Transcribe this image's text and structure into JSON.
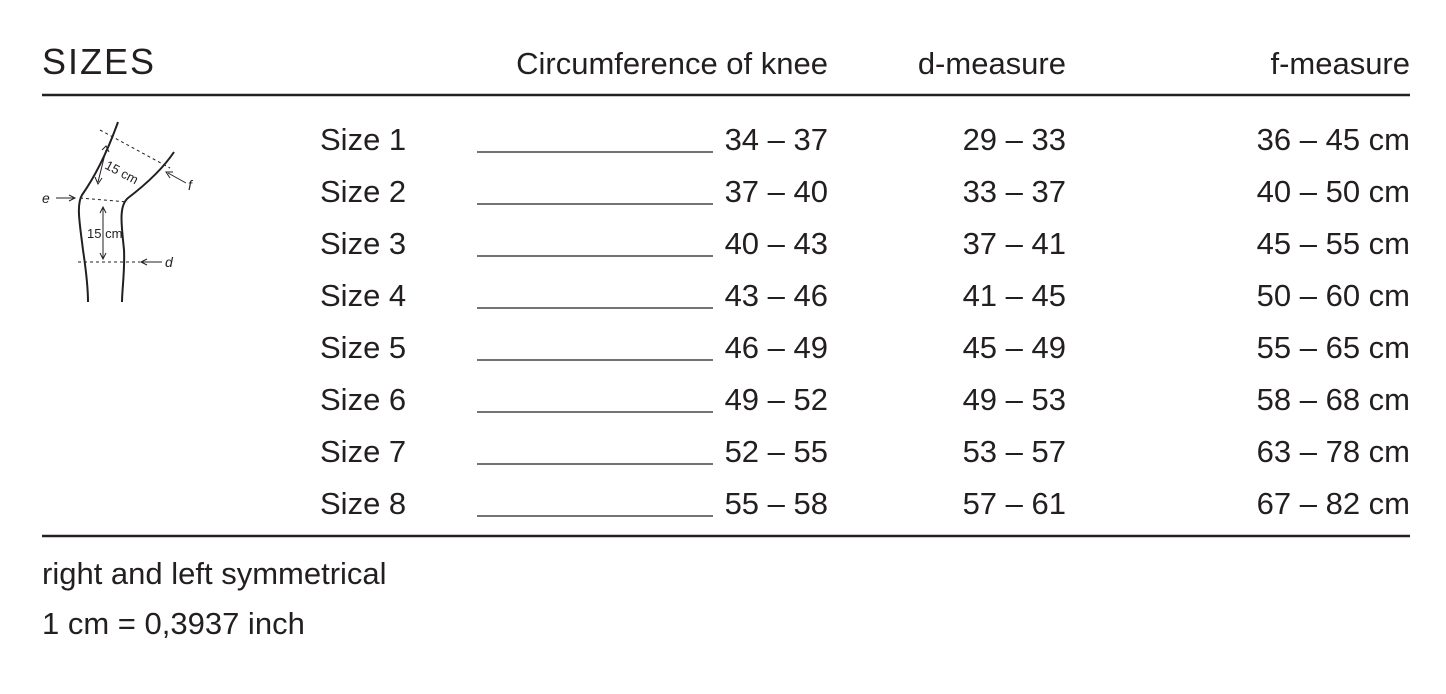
{
  "header": {
    "title": "SIZES",
    "columns": [
      "Circumference of knee",
      "d-measure",
      "f-measure"
    ]
  },
  "diagram": {
    "labels": {
      "upper": "15 cm",
      "lower": "15 cm",
      "e": "e",
      "f": "f",
      "d": "d"
    }
  },
  "table": {
    "rows": [
      [
        "Size 1",
        "34 – 37",
        "29 – 33",
        "36 – 45 cm"
      ],
      [
        "Size 2",
        "37 – 40",
        "33 – 37",
        "40 – 50 cm"
      ],
      [
        "Size 3",
        "40 – 43",
        "37 – 41",
        "45 – 55 cm"
      ],
      [
        "Size 4",
        "43 – 46",
        "41 – 45",
        "50 – 60 cm"
      ],
      [
        "Size 5",
        "46 – 49",
        "45 – 49",
        "55 – 65 cm"
      ],
      [
        "Size 6",
        "49 – 52",
        "49 – 53",
        "58 – 68 cm"
      ],
      [
        "Size 7",
        "52 – 55",
        "53 – 57",
        "63 – 78 cm"
      ],
      [
        "Size 8",
        "55 – 58",
        "57 – 61",
        "67 – 82 cm"
      ]
    ]
  },
  "footer": {
    "notes": [
      "right and left symmetrical",
      "1 cm = 0,3937 inch"
    ]
  }
}
